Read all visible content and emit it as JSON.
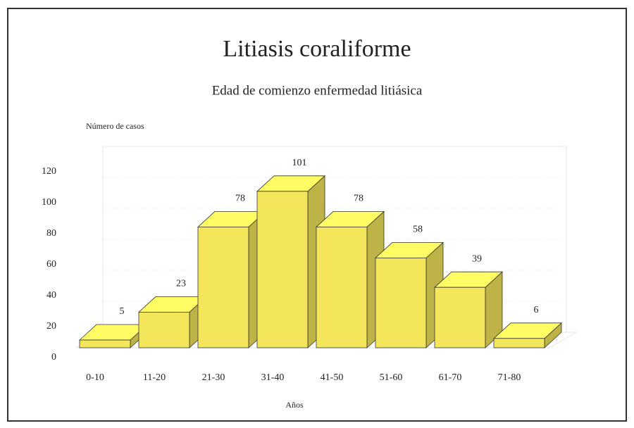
{
  "chart_data": {
    "type": "bar3d",
    "title": "Litiasis coraliforme",
    "subtitle": "Edad de comienzo enfermedad litiásica",
    "y_label": "Número de casos",
    "x_label": "Años",
    "categories": [
      "0-10",
      "11-20",
      "21-30",
      "31-40",
      "41-50",
      "51-60",
      "61-70",
      "71-80"
    ],
    "values": [
      5,
      23,
      78,
      101,
      78,
      58,
      39,
      6
    ],
    "color": "#f3e65a",
    "ylim": [
      0,
      120
    ],
    "yticks": [
      0,
      20,
      40,
      60,
      80,
      100,
      120
    ],
    "grid": true
  }
}
